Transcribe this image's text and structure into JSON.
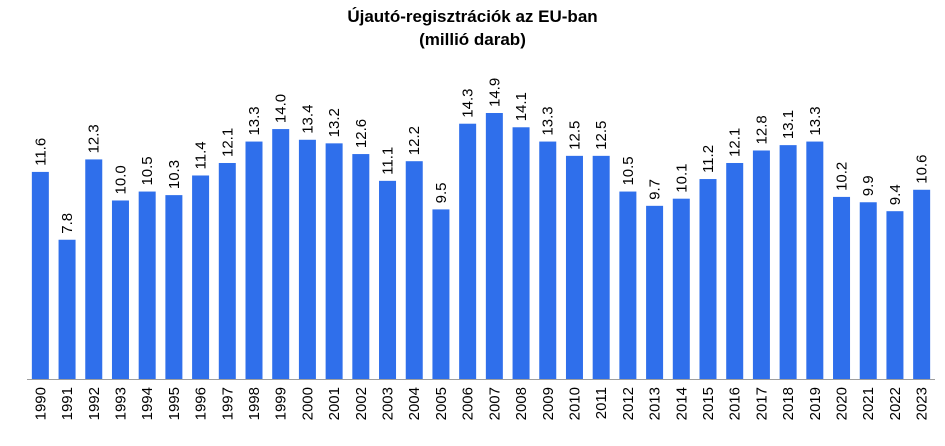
{
  "chart_data": {
    "type": "bar",
    "title": "Újautó-regisztrációk az EU-ban",
    "subtitle": "(millió darab)",
    "categories": [
      "1990",
      "1991",
      "1992",
      "1993",
      "1994",
      "1995",
      "1996",
      "1997",
      "1998",
      "1999",
      "2000",
      "2001",
      "2002",
      "2003",
      "2004",
      "2005",
      "2006",
      "2007",
      "2008",
      "2009",
      "2010",
      "2011",
      "2012",
      "2013",
      "2014",
      "2015",
      "2016",
      "2017",
      "2018",
      "2019",
      "2020",
      "2021",
      "2022",
      "2023"
    ],
    "values": [
      11.6,
      7.8,
      12.3,
      10.0,
      10.5,
      10.3,
      11.4,
      12.1,
      13.3,
      14.0,
      13.4,
      13.2,
      12.6,
      11.1,
      12.2,
      9.5,
      14.3,
      14.9,
      14.1,
      13.3,
      12.5,
      12.5,
      10.5,
      9.7,
      10.1,
      11.2,
      12.1,
      12.8,
      13.1,
      13.3,
      10.2,
      9.9,
      9.4,
      10.6
    ],
    "value_labels": [
      "11.6",
      "7.8",
      "12.3",
      "10.0",
      "10.5",
      "10.3",
      "11.4",
      "12.1",
      "13.3",
      "14.0",
      "13.4",
      "13.2",
      "12.6",
      "11.1",
      "12.2",
      "9.5",
      "14.3",
      "14.9",
      "14.1",
      "13.3",
      "12.5",
      "12.5",
      "10.5",
      "9.7",
      "10.1",
      "11.2",
      "12.1",
      "12.8",
      "13.1",
      "13.3",
      "10.2",
      "9.9",
      "9.4",
      "10.6"
    ],
    "xlabel": "",
    "ylabel": "",
    "ylim": [
      0,
      14.9
    ],
    "grid": false,
    "legend": "none",
    "bar_color": "#2F6FEB",
    "axis_color": "#9E9E9E"
  }
}
